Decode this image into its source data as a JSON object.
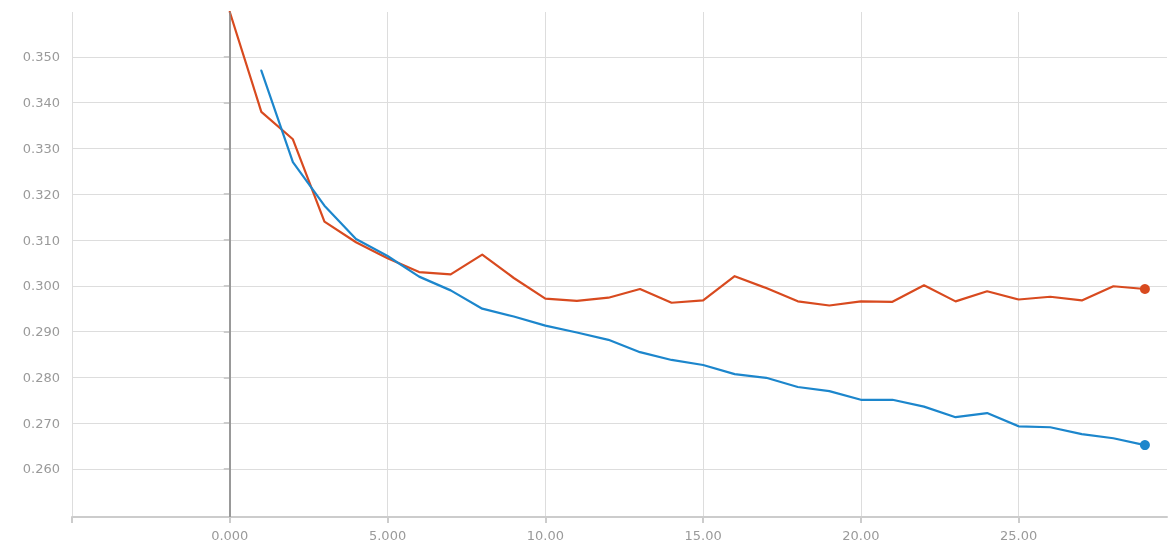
{
  "chart_data": {
    "type": "line",
    "x": [
      0,
      1,
      2,
      3,
      4,
      5,
      6,
      7,
      8,
      9,
      10,
      11,
      12,
      13,
      14,
      15,
      16,
      17,
      18,
      19,
      20,
      21,
      22,
      23,
      24,
      25,
      26,
      27,
      28,
      29
    ],
    "series": [
      {
        "color": "#d84a1f",
        "values": [
          0.3598,
          0.338,
          0.332,
          0.314,
          0.3095,
          0.306,
          0.303,
          0.3025,
          0.3068,
          0.3017,
          0.2972,
          0.2967,
          0.2974,
          0.2993,
          0.2963,
          0.2968,
          0.3021,
          0.2995,
          0.2966,
          0.2957,
          0.2966,
          0.2965,
          0.3001,
          0.2966,
          0.2988,
          0.297,
          0.2976,
          0.2968,
          0.2999,
          0.2993
        ]
      },
      {
        "color": "#1c86cc",
        "values": [
          null,
          0.347,
          0.327,
          0.3175,
          0.3102,
          0.3065,
          0.302,
          0.299,
          0.295,
          0.2933,
          0.2913,
          0.2898,
          0.2882,
          0.2855,
          0.2838,
          0.2827,
          0.2807,
          0.2799,
          0.2779,
          0.277,
          0.2751,
          0.2751,
          0.2736,
          0.2713,
          0.2722,
          0.2693,
          0.2691,
          0.2676,
          0.2667,
          0.2652
        ]
      }
    ],
    "xlim": [
      -5,
      29.7
    ],
    "xticks": [
      {
        "value": -5,
        "label": null
      },
      {
        "value": 0,
        "label": "0.000"
      },
      {
        "value": 5,
        "label": "5.000"
      },
      {
        "value": 10,
        "label": "10.00"
      },
      {
        "value": 15,
        "label": "15.00"
      },
      {
        "value": 20,
        "label": "20.00"
      },
      {
        "value": 25,
        "label": "25.00"
      }
    ],
    "ylim": [
      0.2495,
      0.3598
    ],
    "yticks": [
      {
        "value": 0.26,
        "label": "0.260"
      },
      {
        "value": 0.27,
        "label": "0.270"
      },
      {
        "value": 0.28,
        "label": "0.280"
      },
      {
        "value": 0.29,
        "label": "0.290"
      },
      {
        "value": 0.3,
        "label": "0.300"
      },
      {
        "value": 0.31,
        "label": "0.310"
      },
      {
        "value": 0.32,
        "label": "0.320"
      },
      {
        "value": 0.33,
        "label": "0.330"
      },
      {
        "value": 0.34,
        "label": "0.340"
      },
      {
        "value": 0.35,
        "label": "0.350"
      }
    ],
    "ref_lines": [
      {
        "axis": "x",
        "value": 0,
        "color": "#888888",
        "line_style": "solid"
      }
    ],
    "grid": true,
    "marker": "none",
    "line_style": "solid"
  }
}
